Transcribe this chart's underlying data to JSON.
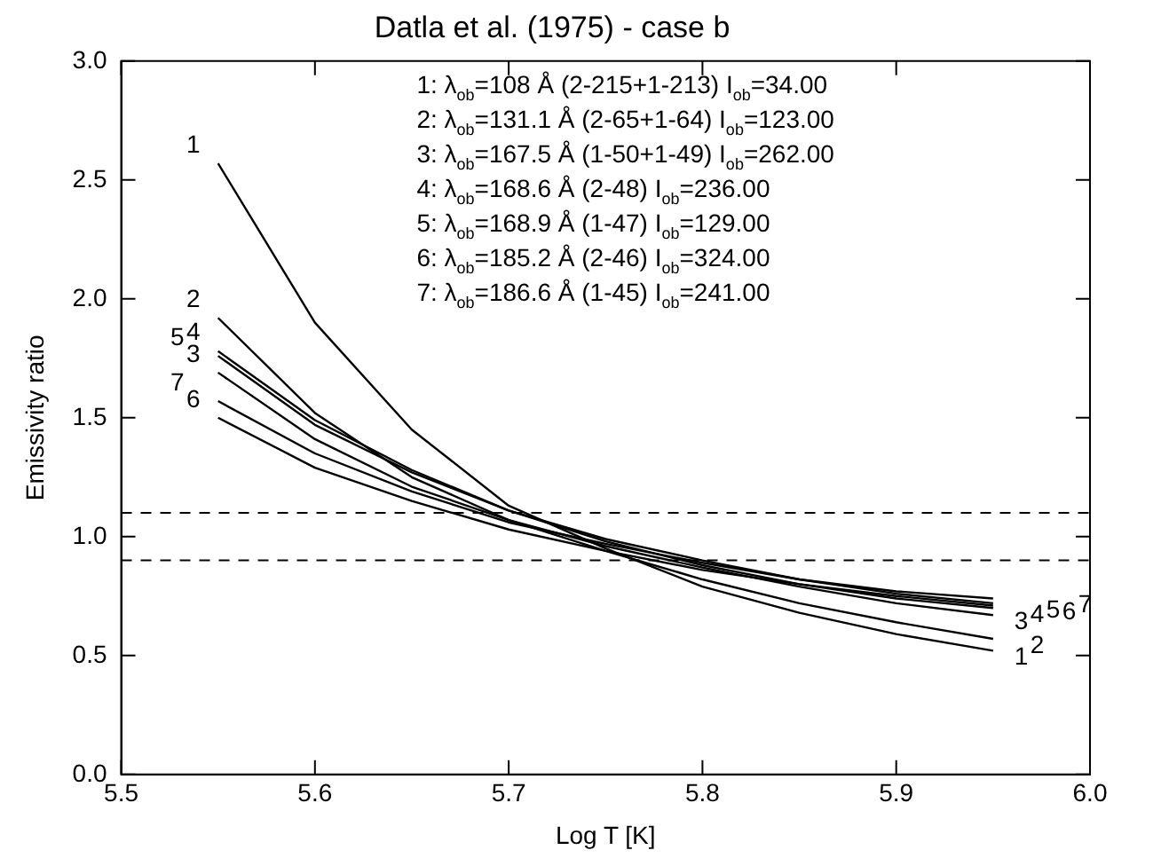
{
  "chart_data": {
    "type": "line",
    "title": "Datla et al. (1975) - case b",
    "xlabel": "Log T [K]",
    "ylabel": "Emissivity ratio",
    "x": [
      5.55,
      5.6,
      5.65,
      5.7,
      5.75,
      5.8,
      5.85,
      5.9,
      5.95
    ],
    "series": [
      {
        "name": "1",
        "color": "#000000",
        "values": [
          2.57,
          1.9,
          1.45,
          1.13,
          0.95,
          0.79,
          0.68,
          0.59,
          0.52
        ]
      },
      {
        "name": "2",
        "color": "#000000",
        "values": [
          1.92,
          1.52,
          1.25,
          1.07,
          0.94,
          0.82,
          0.72,
          0.64,
          0.57
        ]
      },
      {
        "name": "3",
        "color": "#000000",
        "values": [
          1.69,
          1.41,
          1.21,
          1.07,
          0.96,
          0.87,
          0.79,
          0.72,
          0.67
        ]
      },
      {
        "name": "4",
        "color": "#000000",
        "values": [
          1.78,
          1.49,
          1.28,
          1.11,
          0.98,
          0.88,
          0.8,
          0.74,
          0.7
        ]
      },
      {
        "name": "5",
        "color": "#000000",
        "values": [
          1.76,
          1.47,
          1.27,
          1.11,
          0.99,
          0.9,
          0.82,
          0.76,
          0.72
        ]
      },
      {
        "name": "6",
        "color": "#000000",
        "values": [
          1.5,
          1.29,
          1.15,
          1.03,
          0.94,
          0.86,
          0.8,
          0.75,
          0.71
        ]
      },
      {
        "name": "7",
        "color": "#000000",
        "values": [
          1.57,
          1.35,
          1.19,
          1.06,
          0.97,
          0.89,
          0.82,
          0.77,
          0.74
        ]
      }
    ],
    "xlim": [
      5.5,
      6.0
    ],
    "xticks": [
      5.5,
      5.6,
      5.7,
      5.8,
      5.9,
      {
        "value": 6,
        "label": "6.0"
      }
    ],
    "ylim": [
      0,
      3.0
    ],
    "yticks": [
      {
        "value": 0,
        "label": "0.0"
      },
      0.5,
      {
        "value": 1,
        "label": "1.0"
      },
      1.5,
      {
        "value": 2,
        "label": "2.0"
      },
      2.5,
      {
        "value": 3,
        "label": "3.0"
      }
    ],
    "ref_lines": [
      {
        "axis": "y",
        "value": 1.1,
        "color": "#000000",
        "line_style": "dashed"
      },
      {
        "axis": "y",
        "value": 0.9,
        "color": "#000000",
        "line_style": "dashed"
      }
    ],
    "annotations": [
      "1: λ$_{ob}$=108 Å (2-215+1-213) I$_{ob}$=34.00",
      "2: λ$_{ob}$=131.1 Å (2-65+1-64) I$_{ob}$=123.00",
      "3: λ$_{ob}$=167.5 Å (1-50+1-49) I$_{ob}$=262.00",
      "4: λ$_{ob}$=168.6 Å (2-48) I$_{ob}$=236.00",
      "5: λ$_{ob}$=168.9 Å (1-47) I$_{ob}$=129.00",
      "6: λ$_{ob}$=185.2 Å (2-46) I$_{ob}$=324.00",
      "7: λ$_{ob}$=186.6 Å (1-45) I$_{ob}$=241.00"
    ],
    "grid": false,
    "legend": "right",
    "marker": "none",
    "line_style": "solid"
  }
}
